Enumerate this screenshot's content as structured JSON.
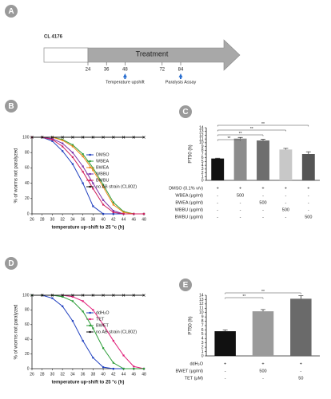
{
  "timeline": {
    "panel": "A",
    "strain": "CL 4176",
    "label": "Treatment",
    "ticks": [
      24,
      36,
      48,
      72,
      84
    ],
    "annotations": [
      {
        "at": 48,
        "label": "Temperature upshift"
      },
      {
        "at": 84,
        "label": "Paralysis Assay"
      }
    ]
  },
  "chart_data": [
    {
      "panel": "B",
      "type": "line",
      "x": [
        26,
        28,
        30,
        32,
        34,
        36,
        38,
        40,
        42,
        44,
        46,
        48
      ],
      "xlim": [
        26,
        48
      ],
      "xticks": [
        26,
        28,
        30,
        32,
        34,
        36,
        38,
        40,
        42,
        44,
        46,
        48
      ],
      "ylim": [
        0,
        100
      ],
      "yticks": [
        0,
        20,
        40,
        60,
        80,
        100
      ],
      "xlabel": "temperature up-shift to 25 °c (h)",
      "ylabel": "% of worms not paralyzed",
      "legend": "upper right",
      "series": [
        {
          "name": "DMSO",
          "color": "#1f3fbf",
          "values": [
            100,
            100,
            95,
            82,
            65,
            40,
            10,
            0,
            0,
            0,
            0,
            0
          ]
        },
        {
          "name": "WBEA",
          "color": "#2e9e3a",
          "values": [
            100,
            100,
            100,
            97,
            90,
            78,
            60,
            38,
            15,
            3,
            0,
            0
          ]
        },
        {
          "name": "BWEA",
          "color": "#f08a1c",
          "values": [
            100,
            100,
            100,
            96,
            88,
            75,
            57,
            35,
            12,
            2,
            0,
            0
          ]
        },
        {
          "name": "WBBU",
          "color": "#7b2fa8",
          "values": [
            100,
            100,
            98,
            92,
            80,
            62,
            40,
            18,
            4,
            0,
            0,
            0
          ]
        },
        {
          "name": "BWBU",
          "color": "#d0215f",
          "values": [
            100,
            100,
            97,
            88,
            74,
            55,
            33,
            12,
            2,
            0,
            0,
            0
          ]
        },
        {
          "name": "no AB strain (CL802)",
          "color": "#111111",
          "values": [
            100,
            100,
            100,
            100,
            100,
            100,
            100,
            100,
            100,
            100,
            100,
            100
          ]
        }
      ]
    },
    {
      "panel": "C",
      "type": "bar",
      "ylabel": "PT50 (h)",
      "values": [
        5.8,
        11.1,
        10.6,
        8.2,
        7.0
      ],
      "errors": [
        0.1,
        0.3,
        0.3,
        0.3,
        0.6
      ],
      "colors": [
        "#111111",
        "#8c8c8c",
        "#6e6e6e",
        "#c8c8c8",
        "#555555"
      ],
      "ylim": [
        0,
        14
      ],
      "yticks": [
        0,
        1,
        2,
        3,
        4,
        5,
        6,
        7,
        8,
        9,
        10,
        11,
        12,
        13,
        14
      ],
      "significance": [
        "**",
        "**",
        "**",
        "**"
      ],
      "table": [
        {
          "label": "DMSO (0.1% v/v)",
          "cells": [
            "+",
            "+",
            "+",
            "+",
            "+"
          ]
        },
        {
          "label": "WBEA (μg/ml)",
          "cells": [
            "-",
            "500",
            "-",
            "-",
            "-"
          ]
        },
        {
          "label": "BWEA (μg/ml)",
          "cells": [
            "-",
            "-",
            "500",
            "-",
            "-"
          ]
        },
        {
          "label": "WBBU (μg/ml)",
          "cells": [
            "-",
            "-",
            "-",
            "500",
            "-"
          ]
        },
        {
          "label": "BWBU (μg/ml)",
          "cells": [
            "-",
            "-",
            "-",
            "-",
            "500"
          ]
        }
      ]
    },
    {
      "panel": "D",
      "type": "line",
      "x": [
        26,
        28,
        30,
        32,
        34,
        36,
        38,
        40,
        42,
        44,
        46,
        48
      ],
      "xlim": [
        26,
        48
      ],
      "xticks": [
        26,
        28,
        30,
        32,
        34,
        36,
        38,
        40,
        42,
        44,
        46,
        48
      ],
      "ylim": [
        0,
        100
      ],
      "yticks": [
        0,
        20,
        40,
        60,
        80,
        100
      ],
      "xlabel": "temperature up-shift to 25 °c (h)",
      "ylabel": "% of worms not paralyzed",
      "legend": "upper right",
      "series": [
        {
          "name": "ddH₂O",
          "color": "#1f3fbf",
          "values": [
            100,
            100,
            96,
            85,
            65,
            38,
            15,
            2,
            0,
            0,
            0,
            0
          ]
        },
        {
          "name": "TET",
          "color": "#e0207a",
          "values": [
            100,
            100,
            100,
            100,
            98,
            92,
            80,
            60,
            38,
            18,
            3,
            0
          ]
        },
        {
          "name": "BWET",
          "color": "#2e9e3a",
          "values": [
            100,
            100,
            100,
            98,
            92,
            78,
            55,
            28,
            8,
            0,
            0,
            0
          ]
        },
        {
          "name": "no AB strain (CL802)",
          "color": "#111111",
          "values": [
            100,
            100,
            100,
            100,
            100,
            100,
            100,
            100,
            100,
            100,
            100,
            100
          ]
        }
      ]
    },
    {
      "panel": "E",
      "type": "bar",
      "ylabel": "PT50 (h)",
      "values": [
        5.7,
        10.3,
        13.2
      ],
      "errors": [
        0.3,
        0.4,
        0.7
      ],
      "colors": [
        "#111111",
        "#9a9a9a",
        "#6a6a6a"
      ],
      "ylim": [
        0,
        14
      ],
      "yticks": [
        0,
        1,
        2,
        3,
        4,
        5,
        6,
        7,
        8,
        9,
        10,
        11,
        12,
        13,
        14
      ],
      "significance": [
        "**",
        "**"
      ],
      "table": [
        {
          "label": "ddH₂O",
          "cells": [
            "+",
            "+",
            "+"
          ]
        },
        {
          "label": "BWET (μg/ml)",
          "cells": [
            "-",
            "500",
            "-"
          ]
        },
        {
          "label": "TET (μM)",
          "cells": [
            "-",
            "-",
            "50"
          ]
        }
      ]
    }
  ]
}
